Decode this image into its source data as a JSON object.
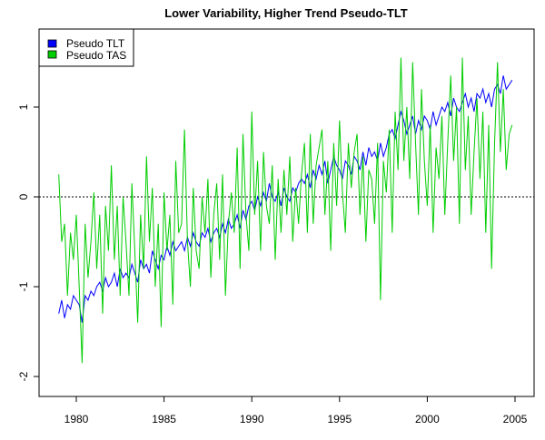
{
  "chart_data": {
    "type": "line",
    "title": "Lower Variability, Higher Trend Pseudo-TLT",
    "xlabel": "",
    "ylabel": "",
    "xlim": [
      1978.1,
      2006.1
    ],
    "ylim": [
      -2.2,
      1.9
    ],
    "x_ticks": [
      "1980",
      "1985",
      "1990",
      "1995",
      "2000",
      "2005"
    ],
    "y_ticks": [
      "-2",
      "-1",
      "0",
      "1"
    ],
    "x_start": 1979.0,
    "x_step": 0.16667,
    "reference_line": 0,
    "legend_position": "top-left",
    "series": [
      {
        "name": "Pseudo TLT",
        "color": "#0000ff",
        "values": [
          -1.3,
          -1.15,
          -1.35,
          -1.2,
          -1.25,
          -1.1,
          -1.15,
          -1.2,
          -1.4,
          -1.1,
          -1.15,
          -1.05,
          -1.1,
          -1.0,
          -0.95,
          -1.05,
          -0.9,
          -1.0,
          -0.95,
          -0.85,
          -1.0,
          -0.8,
          -0.9,
          -0.85,
          -0.9,
          -0.75,
          -0.85,
          -0.95,
          -0.7,
          -0.8,
          -0.75,
          -0.85,
          -0.6,
          -0.7,
          -0.8,
          -0.65,
          -0.7,
          -0.55,
          -0.65,
          -0.5,
          -0.6,
          -0.55,
          -0.5,
          -0.6,
          -0.45,
          -0.55,
          -0.4,
          -0.5,
          -0.55,
          -0.4,
          -0.45,
          -0.35,
          -0.5,
          -0.4,
          -0.35,
          -0.45,
          -0.3,
          -0.4,
          -0.25,
          -0.35,
          -0.3,
          -0.2,
          -0.35,
          -0.15,
          -0.25,
          -0.1,
          -0.05,
          -0.15,
          0.0,
          -0.1,
          0.05,
          -0.05,
          0.15,
          0.0,
          -0.05,
          0.05,
          -0.1,
          0.1,
          0.0,
          -0.05,
          0.1,
          0.05,
          0.15,
          0.2,
          0.15,
          0.25,
          0.1,
          0.3,
          0.2,
          0.35,
          0.25,
          0.4,
          0.15,
          0.3,
          0.45,
          0.35,
          0.3,
          0.2,
          0.4,
          0.35,
          0.25,
          0.45,
          0.4,
          0.3,
          0.5,
          0.35,
          0.55,
          0.45,
          0.5,
          0.4,
          0.6,
          0.45,
          0.55,
          0.7,
          0.75,
          0.65,
          0.8,
          0.95,
          0.85,
          0.7,
          0.8,
          0.9,
          0.7,
          0.85,
          0.75,
          0.9,
          0.85,
          0.75,
          0.95,
          0.8,
          0.9,
          1.0,
          0.95,
          1.05,
          0.9,
          1.1,
          1.0,
          0.95,
          1.05,
          1.15,
          1.0,
          1.1,
          0.95,
          1.15,
          1.1,
          1.2,
          1.05,
          1.15,
          1.0,
          1.2,
          1.25,
          1.15,
          1.35,
          1.2,
          1.25,
          1.3
        ]
      },
      {
        "name": "Pseudo TAS",
        "color": "#00cd00",
        "values": [
          0.25,
          -0.5,
          -0.3,
          -1.1,
          -0.4,
          -0.7,
          -0.2,
          -1.0,
          -1.85,
          -0.3,
          -0.9,
          -0.5,
          0.05,
          -0.8,
          -0.2,
          -1.3,
          -0.1,
          -0.6,
          0.35,
          -0.7,
          -0.1,
          -1.1,
          0.0,
          -0.5,
          -1.1,
          0.15,
          -0.6,
          -1.4,
          -0.2,
          -0.8,
          0.45,
          -0.5,
          0.1,
          -1.0,
          -0.3,
          -1.45,
          0.05,
          -0.6,
          -0.2,
          -1.2,
          0.4,
          -0.4,
          -0.3,
          0.75,
          -0.5,
          -1.0,
          0.1,
          -0.6,
          -0.8,
          0.0,
          -0.4,
          0.2,
          -0.9,
          -0.2,
          0.15,
          -0.7,
          0.25,
          -1.1,
          -0.3,
          0.05,
          -0.4,
          0.55,
          -0.8,
          0.7,
          -0.2,
          -0.6,
          0.95,
          -0.2,
          0.4,
          -0.6,
          0.5,
          -0.1,
          -0.3,
          0.35,
          -0.7,
          0.2,
          -0.4,
          0.3,
          -0.2,
          0.45,
          -0.5,
          0.1,
          -0.3,
          0.25,
          0.6,
          -0.4,
          0.7,
          -0.3,
          0.35,
          0.55,
          0.75,
          -0.2,
          0.4,
          -0.6,
          0.6,
          -0.1,
          0.85,
          0.05,
          -0.4,
          0.6,
          0.1,
          0.5,
          0.7,
          -0.2,
          0.45,
          -0.5,
          0.3,
          0.2,
          -0.3,
          0.6,
          -1.15,
          0.4,
          0.05,
          0.75,
          -0.4,
          0.95,
          0.3,
          1.55,
          0.4,
          1.0,
          0.2,
          1.5,
          0.6,
          -0.2,
          1.2,
          0.4,
          -0.1,
          0.8,
          -0.4,
          0.55,
          0.2,
          0.9,
          -0.2,
          0.6,
          1.35,
          0.4,
          1.0,
          -0.3,
          1.55,
          0.3,
          0.9,
          -0.2,
          0.5,
          1.1,
          0.2,
          0.95,
          -0.4,
          0.8,
          -0.8,
          0.6,
          1.5,
          0.5,
          1.2,
          0.3,
          0.7,
          0.8
        ]
      }
    ]
  }
}
